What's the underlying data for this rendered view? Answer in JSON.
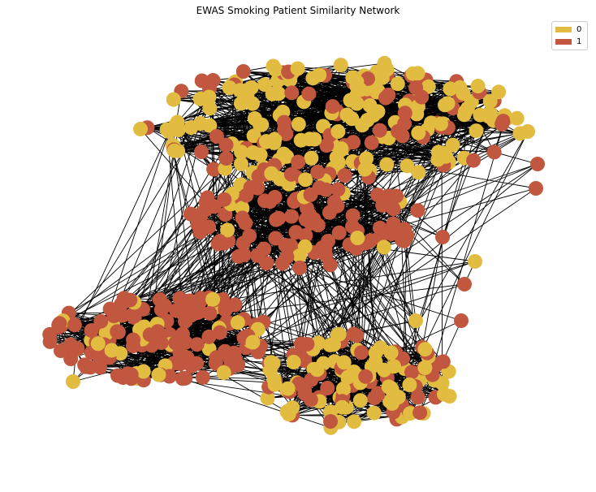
{
  "title": "EWAS Smoking Patient Similarity Network",
  "legend": [
    {
      "label": "0",
      "color": "#E2BC41"
    },
    {
      "label": "1",
      "color": "#C0573E"
    }
  ],
  "chart_data": {
    "type": "network",
    "title": "EWAS Smoking Patient Similarity Network",
    "legend_placement": "top-right",
    "classes": [
      "0",
      "1"
    ],
    "colors": {
      "0": "#E2BC41",
      "1": "#C0573E"
    },
    "edge_color": "#000000",
    "clusters": [
      {
        "name": "upper",
        "dominant_class": "0"
      },
      {
        "name": "middle",
        "dominant_class": "1"
      },
      {
        "name": "lower-left",
        "dominant_class": "1"
      },
      {
        "name": "lower-right",
        "dominant_class": "0"
      }
    ]
  }
}
